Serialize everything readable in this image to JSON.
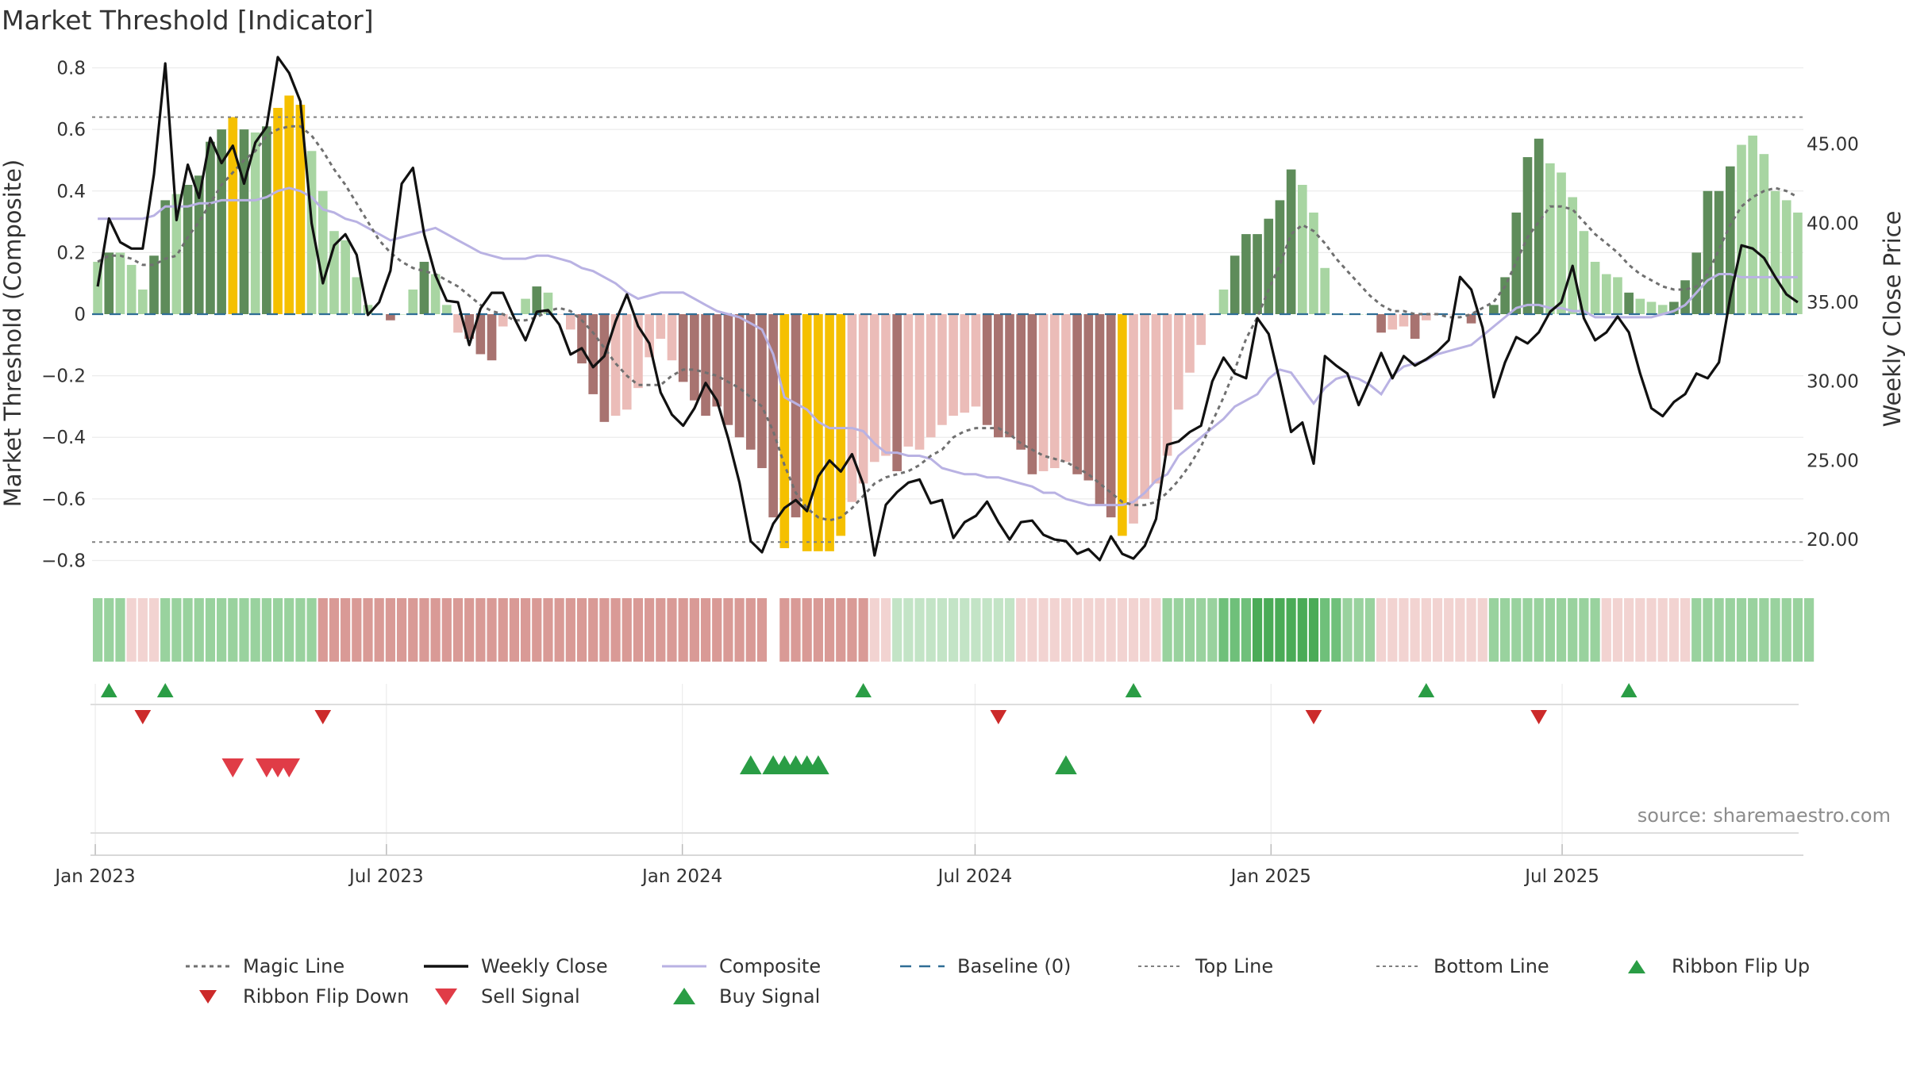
{
  "title": "Market Threshold [Indicator]",
  "source": "source: sharemaestro.com",
  "colors": {
    "hist_strong_pos": "#5e8c5a",
    "hist_weak_pos": "#a8d5a2",
    "hist_strong_neg": "#a87370",
    "hist_weak_neg": "#ebbcb8",
    "extreme": "#f5c000",
    "weekly_close": "#111111",
    "composite": "#b9b2e3",
    "magic_line": "#707070",
    "baseline": "#2f6d95",
    "threshold_lines": "#808080",
    "ribbon_flip_up": "#2a9d45",
    "ribbon_flip_down": "#cc2a2a",
    "sell_signal": "#e03c47",
    "buy_signal": "#2a9d45"
  },
  "chart_data": {
    "type": "bar+line",
    "x_start": "2022-12-30",
    "x_interval": "weekly",
    "x_ticks": [
      "Jan 2023",
      "Jul 2023",
      "Jan 2024",
      "Jul 2024",
      "Jan 2025",
      "Jul 2025"
    ],
    "x_tick_dates": [
      "2023-01-01",
      "2023-07-01",
      "2024-01-01",
      "2024-07-01",
      "2025-01-01",
      "2025-07-01"
    ],
    "y_left": {
      "label": "Market Threshold (Composite)",
      "range": [
        -0.84,
        0.84
      ],
      "ticks": [
        0.8,
        0.6,
        0.4,
        0.2,
        0,
        -0.2,
        -0.4,
        -0.6,
        -0.8
      ],
      "tick_labels": [
        "0.8",
        "0.6",
        "0.4",
        "0.2",
        "0",
        "−0.2",
        "−0.4",
        "−0.6",
        "−0.8"
      ]
    },
    "y_right": {
      "label": "Weekly Close Price",
      "range": [
        17.9,
        50.6
      ],
      "ticks": [
        45,
        40,
        35,
        30,
        25,
        20
      ],
      "tick_labels": [
        "45.00",
        "40.00",
        "35.00",
        "30.00",
        "25.00",
        "20.00"
      ]
    },
    "top_line": 0.64,
    "bottom_line": -0.74,
    "baseline": 0,
    "histogram": [
      0.17,
      0.2,
      0.2,
      0.16,
      0.08,
      0.19,
      0.37,
      0.39,
      0.42,
      0.45,
      0.56,
      0.6,
      0.64,
      0.6,
      0.59,
      0.61,
      0.67,
      0.71,
      0.68,
      0.53,
      0.4,
      0.27,
      0.24,
      0.12,
      0.03,
      0.0,
      -0.02,
      0.0,
      0.08,
      0.17,
      0.13,
      0.03,
      -0.06,
      -0.08,
      -0.13,
      -0.15,
      -0.04,
      0.0,
      0.05,
      0.09,
      0.07,
      0.0,
      -0.05,
      -0.16,
      -0.26,
      -0.35,
      -0.33,
      -0.31,
      -0.24,
      -0.14,
      -0.08,
      -0.15,
      -0.22,
      -0.28,
      -0.33,
      -0.3,
      -0.36,
      -0.4,
      -0.44,
      -0.5,
      -0.66,
      -0.76,
      -0.66,
      -0.77,
      -0.77,
      -0.77,
      -0.72,
      -0.61,
      -0.55,
      -0.48,
      -0.46,
      -0.51,
      -0.43,
      -0.44,
      -0.4,
      -0.36,
      -0.33,
      -0.32,
      -0.3,
      -0.36,
      -0.4,
      -0.4,
      -0.44,
      -0.52,
      -0.51,
      -0.5,
      -0.48,
      -0.52,
      -0.54,
      -0.62,
      -0.66,
      -0.72,
      -0.68,
      -0.6,
      -0.55,
      -0.46,
      -0.31,
      -0.19,
      -0.1,
      0.0,
      0.08,
      0.19,
      0.26,
      0.26,
      0.31,
      0.37,
      0.47,
      0.42,
      0.33,
      0.15,
      0.0,
      0.0,
      0.0,
      0.0,
      -0.06,
      -0.05,
      -0.04,
      -0.08,
      -0.02,
      0.0,
      0.0,
      0.0,
      -0.03,
      0.0,
      0.03,
      0.12,
      0.33,
      0.51,
      0.57,
      0.49,
      0.46,
      0.38,
      0.27,
      0.17,
      0.13,
      0.12,
      0.07,
      0.05,
      0.04,
      0.03,
      0.04,
      0.11,
      0.2,
      0.4,
      0.4,
      0.48,
      0.55,
      0.58,
      0.52,
      0.4,
      0.37,
      0.33
    ],
    "histogram_colors": [
      "w",
      "s",
      "w",
      "w",
      "w",
      "s",
      "s",
      "w",
      "s",
      "s",
      "s",
      "s",
      "y",
      "s",
      "w",
      "s",
      "y",
      "y",
      "y",
      "w",
      "w",
      "w",
      "w",
      "w",
      "w",
      "w",
      "n",
      "w",
      "w",
      "s",
      "w",
      "w",
      "u",
      "n",
      "n",
      "n",
      "u",
      "w",
      "w",
      "s",
      "w",
      "u",
      "u",
      "n",
      "n",
      "n",
      "u",
      "u",
      "u",
      "u",
      "u",
      "u",
      "n",
      "n",
      "n",
      "n",
      "n",
      "n",
      "n",
      "n",
      "n",
      "y",
      "n",
      "y",
      "y",
      "y",
      "y",
      "u",
      "u",
      "u",
      "u",
      "n",
      "u",
      "u",
      "u",
      "u",
      "u",
      "u",
      "u",
      "n",
      "n",
      "n",
      "n",
      "n",
      "u",
      "u",
      "u",
      "n",
      "n",
      "n",
      "n",
      "y",
      "u",
      "u",
      "u",
      "u",
      "u",
      "u",
      "u",
      "w",
      "w",
      "s",
      "s",
      "s",
      "s",
      "s",
      "s",
      "w",
      "w",
      "w",
      "w",
      "w",
      "w",
      "w",
      "n",
      "u",
      "u",
      "n",
      "u",
      "n",
      "u",
      "u",
      "n",
      "u",
      "s",
      "s",
      "s",
      "s",
      "s",
      "w",
      "w",
      "w",
      "w",
      "w",
      "w",
      "w",
      "s",
      "w",
      "w",
      "w",
      "s",
      "s",
      "s",
      "s",
      "s",
      "s",
      "w",
      "w",
      "w",
      "w"
    ],
    "weekly_close": [
      36.0,
      40.3,
      38.8,
      38.4,
      38.4,
      43.1,
      50.1,
      40.2,
      43.7,
      41.6,
      45.4,
      43.8,
      44.9,
      42.5,
      45.1,
      46.1,
      50.5,
      49.5,
      47.7,
      40.0,
      36.2,
      38.6,
      39.3,
      38.0,
      34.2,
      35.0,
      37.0,
      42.5,
      43.5,
      39.3,
      36.7,
      35.1,
      35.0,
      32.3,
      34.6,
      35.6,
      35.6,
      34.0,
      32.6,
      34.4,
      34.5,
      33.6,
      31.7,
      32.1,
      30.9,
      31.6,
      33.8,
      35.5,
      33.5,
      32.4,
      29.3,
      27.9,
      27.2,
      28.3,
      29.9,
      28.8,
      26.4,
      23.6,
      19.9,
      19.2,
      21.0,
      22.0,
      22.5,
      21.8,
      24.0,
      25.0,
      24.3,
      25.4,
      23.5,
      19.0,
      22.2,
      23.0,
      23.6,
      23.8,
      22.3,
      22.5,
      20.1,
      21.1,
      21.5,
      22.4,
      21.1,
      20.0,
      21.1,
      21.2,
      20.3,
      20.0,
      19.9,
      19.1,
      19.4,
      18.7,
      20.2,
      19.1,
      18.8,
      19.6,
      21.3,
      26.0,
      26.2,
      26.8,
      27.2,
      30.0,
      31.5,
      30.5,
      30.2,
      34.0,
      33.0,
      30.0,
      26.8,
      27.4,
      24.8,
      31.6,
      31.0,
      30.5,
      28.5,
      30.1,
      31.8,
      30.2,
      31.6,
      31.0,
      31.4,
      31.9,
      32.6,
      36.6,
      35.8,
      33.4,
      29.0,
      31.2,
      32.8,
      32.4,
      33.1,
      34.4,
      35.0,
      37.3,
      34.0,
      32.6,
      33.1,
      34.1,
      33.1,
      30.5,
      28.3,
      27.8,
      28.7,
      29.2,
      30.5,
      30.2,
      31.2,
      35.3,
      38.6,
      38.4,
      37.8,
      36.6,
      35.5,
      35.0
    ],
    "composite": [
      0.31,
      0.31,
      0.31,
      0.31,
      0.31,
      0.32,
      0.35,
      0.35,
      0.35,
      0.36,
      0.36,
      0.37,
      0.37,
      0.37,
      0.37,
      0.38,
      0.4,
      0.41,
      0.4,
      0.38,
      0.34,
      0.33,
      0.31,
      0.3,
      0.28,
      0.26,
      0.24,
      0.25,
      0.26,
      0.27,
      0.28,
      0.26,
      0.24,
      0.22,
      0.2,
      0.19,
      0.18,
      0.18,
      0.18,
      0.19,
      0.19,
      0.18,
      0.17,
      0.15,
      0.14,
      0.12,
      0.1,
      0.07,
      0.05,
      0.06,
      0.07,
      0.07,
      0.07,
      0.05,
      0.03,
      0.01,
      0.0,
      -0.01,
      -0.03,
      -0.05,
      -0.13,
      -0.27,
      -0.29,
      -0.31,
      -0.35,
      -0.37,
      -0.37,
      -0.37,
      -0.38,
      -0.42,
      -0.45,
      -0.45,
      -0.46,
      -0.46,
      -0.47,
      -0.5,
      -0.51,
      -0.52,
      -0.52,
      -0.53,
      -0.53,
      -0.54,
      -0.55,
      -0.56,
      -0.58,
      -0.58,
      -0.6,
      -0.61,
      -0.62,
      -0.62,
      -0.62,
      -0.62,
      -0.61,
      -0.58,
      -0.54,
      -0.52,
      -0.46,
      -0.43,
      -0.4,
      -0.37,
      -0.34,
      -0.3,
      -0.28,
      -0.26,
      -0.21,
      -0.18,
      -0.19,
      -0.24,
      -0.29,
      -0.24,
      -0.21,
      -0.2,
      -0.21,
      -0.23,
      -0.26,
      -0.2,
      -0.17,
      -0.16,
      -0.15,
      -0.13,
      -0.12,
      -0.11,
      -0.1,
      -0.07,
      -0.04,
      -0.01,
      0.02,
      0.03,
      0.03,
      0.02,
      0.02,
      0.01,
      0.01,
      -0.01,
      -0.01,
      -0.01,
      -0.01,
      -0.01,
      -0.01,
      0.0,
      0.01,
      0.03,
      0.07,
      0.11,
      0.13,
      0.13,
      0.12,
      0.12,
      0.12,
      0.12,
      0.12,
      0.12
    ],
    "magic_line": [
      0.17,
      0.19,
      0.19,
      0.18,
      0.16,
      0.16,
      0.18,
      0.19,
      0.25,
      0.3,
      0.36,
      0.42,
      0.46,
      0.5,
      0.53,
      0.58,
      0.6,
      0.61,
      0.61,
      0.58,
      0.53,
      0.47,
      0.42,
      0.36,
      0.3,
      0.24,
      0.2,
      0.17,
      0.15,
      0.14,
      0.13,
      0.11,
      0.09,
      0.06,
      0.03,
      0.01,
      0.0,
      -0.02,
      -0.02,
      -0.01,
      0.01,
      0.02,
      0.01,
      -0.02,
      -0.06,
      -0.11,
      -0.16,
      -0.2,
      -0.23,
      -0.23,
      -0.23,
      -0.2,
      -0.18,
      -0.18,
      -0.19,
      -0.2,
      -0.22,
      -0.24,
      -0.27,
      -0.3,
      -0.38,
      -0.49,
      -0.58,
      -0.63,
      -0.66,
      -0.67,
      -0.66,
      -0.63,
      -0.59,
      -0.55,
      -0.53,
      -0.52,
      -0.51,
      -0.49,
      -0.46,
      -0.44,
      -0.4,
      -0.38,
      -0.37,
      -0.37,
      -0.37,
      -0.39,
      -0.42,
      -0.44,
      -0.46,
      -0.47,
      -0.48,
      -0.5,
      -0.52,
      -0.55,
      -0.58,
      -0.61,
      -0.62,
      -0.62,
      -0.61,
      -0.58,
      -0.54,
      -0.49,
      -0.43,
      -0.35,
      -0.27,
      -0.18,
      -0.08,
      -0.01,
      0.08,
      0.16,
      0.26,
      0.29,
      0.27,
      0.23,
      0.18,
      0.14,
      0.1,
      0.06,
      0.03,
      0.01,
      0.01,
      0.0,
      0.0,
      0.0,
      -0.01,
      -0.01,
      0.0,
      0.02,
      0.04,
      0.09,
      0.17,
      0.25,
      0.3,
      0.35,
      0.35,
      0.34,
      0.3,
      0.26,
      0.23,
      0.2,
      0.16,
      0.13,
      0.11,
      0.09,
      0.08,
      0.08,
      0.09,
      0.13,
      0.21,
      0.29,
      0.35,
      0.38,
      0.4,
      0.41,
      0.4,
      0.38
    ],
    "ribbon": [
      "g1",
      "g1",
      "g1",
      "r0",
      "r0",
      "r0",
      "g1",
      "g1",
      "g1",
      "g1",
      "g1",
      "g1",
      "g1",
      "g1",
      "g1",
      "g1",
      "g1",
      "g1",
      "g1",
      "g1",
      "r1",
      "r1",
      "r1",
      "r1",
      "r1",
      "r1",
      "r1",
      "r1",
      "r1",
      "r1",
      "r1",
      "r1",
      "r1",
      "r1",
      "r1",
      "r1",
      "r1",
      "r1",
      "r1",
      "r1",
      "r1",
      "r1",
      "r1",
      "r1",
      "r1",
      "r1",
      "r1",
      "r1",
      "r1",
      "r1",
      "r1",
      "r1",
      "r1",
      "r1",
      "r1",
      "r1",
      "r1",
      "r1",
      "r1",
      "r1",
      "r1",
      "r1",
      "r1",
      "r1",
      "r1",
      "r1",
      "r1",
      "r1",
      "r1",
      "r0",
      "r0",
      "g0",
      "g0",
      "g0",
      "g0",
      "g0",
      "g0",
      "g0",
      "g0",
      "g0",
      "g0",
      "g0",
      "r0",
      "r0",
      "r0",
      "r0",
      "r0",
      "r0",
      "r0",
      "r0",
      "r0",
      "r0",
      "r0",
      "r0",
      "r0",
      "g1",
      "g1",
      "g1",
      "g1",
      "g1",
      "g2",
      "g2",
      "g2",
      "g3",
      "g3",
      "g3",
      "g3",
      "g3",
      "g3",
      "g2",
      "g2",
      "g1",
      "g1",
      "g1",
      "r0",
      "r0",
      "r0",
      "r0",
      "r0",
      "r0",
      "r0",
      "r0",
      "r0",
      "r0",
      "g1",
      "g1",
      "g1",
      "g1",
      "g1",
      "g1",
      "g1",
      "g1",
      "g1",
      "g1",
      "r0",
      "r0",
      "r0",
      "r0",
      "r0",
      "r0",
      "r0",
      "r0",
      "g1",
      "g1",
      "g1",
      "g1",
      "g1",
      "g1",
      "g1",
      "g1",
      "g1",
      "g1",
      "g1"
    ],
    "ribbon_gaps": [
      60
    ],
    "ribbon_flip_up": [
      1,
      6,
      68,
      92,
      118,
      136
    ],
    "ribbon_flip_down": [
      4,
      20,
      80,
      108,
      128
    ],
    "sell_signal": [
      12,
      15,
      16,
      17
    ],
    "buy_signal": [
      58,
      60,
      61,
      62,
      63,
      64,
      86
    ],
    "legend": [
      "Magic Line",
      "Weekly Close",
      "Composite",
      "Baseline (0)",
      "Top Line",
      "Bottom Line",
      "Ribbon Flip Up",
      "Ribbon Flip Down",
      "Sell Signal",
      "Buy Signal"
    ]
  }
}
